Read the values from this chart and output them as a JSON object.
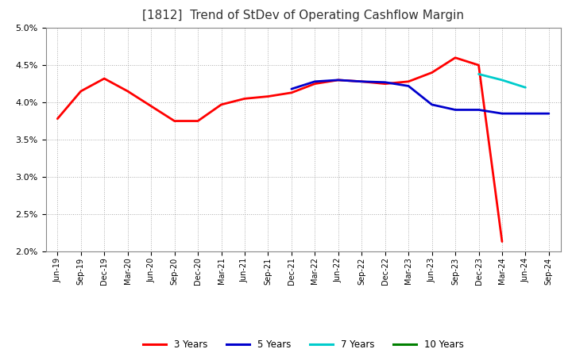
{
  "title": "[1812]  Trend of StDev of Operating Cashflow Margin",
  "ylim": [
    0.02,
    0.05
  ],
  "yticks": [
    0.02,
    0.025,
    0.03,
    0.035,
    0.04,
    0.045,
    0.05
  ],
  "x_labels": [
    "Jun-19",
    "Sep-19",
    "Dec-19",
    "Mar-20",
    "Jun-20",
    "Sep-20",
    "Dec-20",
    "Mar-21",
    "Jun-21",
    "Sep-21",
    "Dec-21",
    "Mar-22",
    "Jun-22",
    "Sep-22",
    "Dec-22",
    "Mar-23",
    "Jun-23",
    "Sep-23",
    "Dec-23",
    "Mar-24",
    "Jun-24",
    "Sep-24"
  ],
  "series_3y": {
    "label": "3 Years",
    "color": "#ff0000",
    "values": [
      0.0378,
      0.0415,
      0.0432,
      0.0415,
      0.0395,
      0.0375,
      0.0375,
      0.0397,
      0.0405,
      0.0408,
      0.0413,
      0.0425,
      0.043,
      0.0428,
      0.0425,
      0.0428,
      0.044,
      0.046,
      0.045,
      0.0213,
      null,
      null
    ]
  },
  "series_5y": {
    "label": "5 Years",
    "color": "#0000cd",
    "values": [
      null,
      null,
      null,
      null,
      null,
      null,
      null,
      null,
      null,
      null,
      0.0418,
      0.0428,
      0.043,
      0.0428,
      0.0427,
      0.0422,
      0.0397,
      0.039,
      0.039,
      0.0385,
      0.0385,
      0.0385
    ]
  },
  "series_7y": {
    "label": "7 Years",
    "color": "#00cccc",
    "values": [
      null,
      null,
      null,
      null,
      null,
      null,
      null,
      null,
      null,
      null,
      null,
      null,
      null,
      null,
      null,
      null,
      null,
      null,
      0.0438,
      0.043,
      0.042,
      null
    ]
  },
  "series_10y": {
    "label": "10 Years",
    "color": "#008000",
    "values": [
      null,
      null,
      null,
      null,
      null,
      null,
      null,
      null,
      null,
      null,
      null,
      null,
      null,
      null,
      null,
      null,
      null,
      null,
      null,
      null,
      null,
      null
    ]
  },
  "background_color": "#ffffff",
  "grid_color": "#aaaaaa",
  "title_fontsize": 11,
  "legend_labels": [
    "3 Years",
    "5 Years",
    "7 Years",
    "10 Years"
  ],
  "legend_colors": [
    "#ff0000",
    "#0000cd",
    "#00cccc",
    "#008000"
  ]
}
